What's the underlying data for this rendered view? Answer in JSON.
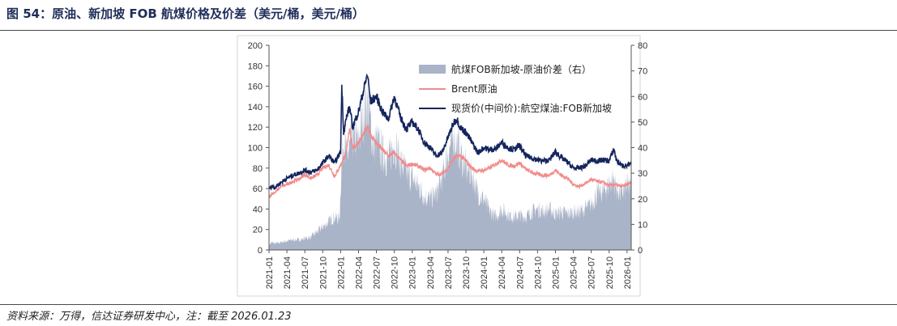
{
  "figure": {
    "title": "图 54：原油、新加坡 FOB 航煤价格及价差（美元/桶，美元/桶）",
    "source": "资料来源：万得，信达证券研发中心，注：截至 2026.01.23"
  },
  "colors": {
    "spread": "#aab4c8",
    "brent": "#f28b8b",
    "jet": "#14255e",
    "axis": "#555555"
  },
  "chart_data": {
    "type": "line",
    "title": "原油、新加坡 FOB 航煤价格及价差",
    "x_tick_labels": [
      "2021-01",
      "2021-04",
      "2021-07",
      "2021-10",
      "2022-01",
      "2022-04",
      "2022-07",
      "2022-10",
      "2023-01",
      "2023-04",
      "2023-07",
      "2023-10",
      "2024-01",
      "2024-04",
      "2024-07",
      "2024-10",
      "2025-01",
      "2025-04",
      "2025-07",
      "2025-10",
      "2026-01"
    ],
    "x_tick_index": [
      0,
      3,
      6,
      9,
      12,
      15,
      18,
      21,
      24,
      27,
      30,
      33,
      36,
      39,
      42,
      45,
      48,
      51,
      54,
      57,
      60
    ],
    "x_range": [
      0,
      60.7
    ],
    "y_left": {
      "min": 0,
      "max": 200,
      "ticks": [
        "0",
        "20",
        "40",
        "60",
        "80",
        "100",
        "120",
        "140",
        "160",
        "180",
        "200"
      ]
    },
    "y_right": {
      "min": 0,
      "max": 80,
      "ticks": [
        "0",
        "10",
        "20",
        "30",
        "40",
        "50",
        "60",
        "70",
        "80"
      ]
    },
    "series": [
      {
        "name": "航煤FOB新加坡-原油价差（右）",
        "type": "area",
        "axis": "right",
        "points": [
          [
            0,
            2
          ],
          [
            0.5,
            3
          ],
          [
            1,
            2.5
          ],
          [
            2,
            3
          ],
          [
            3,
            3.5
          ],
          [
            4,
            4
          ],
          [
            5,
            4
          ],
          [
            6,
            4.5
          ],
          [
            7,
            5
          ],
          [
            8,
            7
          ],
          [
            9,
            9
          ],
          [
            10,
            11
          ],
          [
            11,
            13
          ],
          [
            11.8,
            12
          ],
          [
            12.1,
            30
          ],
          [
            12.5,
            45
          ],
          [
            13,
            36
          ],
          [
            13.5,
            40
          ],
          [
            14,
            45
          ],
          [
            15,
            42
          ],
          [
            16,
            55
          ],
          [
            16.5,
            58
          ],
          [
            17,
            50
          ],
          [
            17.5,
            40
          ],
          [
            18,
            43
          ],
          [
            19,
            38
          ],
          [
            20,
            35
          ],
          [
            21,
            42
          ],
          [
            22,
            35
          ],
          [
            23,
            30
          ],
          [
            24,
            28
          ],
          [
            25,
            25
          ],
          [
            26,
            21
          ],
          [
            27,
            20
          ],
          [
            28,
            22
          ],
          [
            29,
            28
          ],
          [
            30,
            38
          ],
          [
            31,
            45
          ],
          [
            32,
            38
          ],
          [
            33,
            32
          ],
          [
            34,
            30
          ],
          [
            35,
            22
          ],
          [
            36,
            20
          ],
          [
            37,
            15
          ],
          [
            38,
            13
          ],
          [
            39,
            16
          ],
          [
            40,
            14
          ],
          [
            41,
            13
          ],
          [
            42,
            13.5
          ],
          [
            43,
            13
          ],
          [
            44,
            15
          ],
          [
            45,
            16
          ],
          [
            46,
            15
          ],
          [
            47,
            16
          ],
          [
            48,
            14
          ],
          [
            49,
            15
          ],
          [
            50,
            14
          ],
          [
            51,
            15
          ],
          [
            52,
            15
          ],
          [
            53,
            16
          ],
          [
            54,
            18
          ],
          [
            55,
            22
          ],
          [
            56,
            23
          ],
          [
            57,
            26
          ],
          [
            57.8,
            28
          ],
          [
            58.2,
            24
          ],
          [
            59,
            22
          ],
          [
            60,
            25
          ],
          [
            60.7,
            24
          ]
        ]
      },
      {
        "name": "Brent原油",
        "type": "line",
        "axis": "left",
        "points": [
          [
            0,
            52
          ],
          [
            0.5,
            55
          ],
          [
            1,
            56
          ],
          [
            2,
            62
          ],
          [
            3,
            64
          ],
          [
            4,
            67
          ],
          [
            5,
            69
          ],
          [
            6,
            74
          ],
          [
            7,
            70
          ],
          [
            8,
            73
          ],
          [
            9,
            80
          ],
          [
            10,
            83
          ],
          [
            11,
            72
          ],
          [
            12,
            83
          ],
          [
            13,
            96
          ],
          [
            13.5,
            120
          ],
          [
            14,
            100
          ],
          [
            15,
            105
          ],
          [
            16,
            115
          ],
          [
            16.5,
            120
          ],
          [
            17,
            113
          ],
          [
            18,
            104
          ],
          [
            19,
            98
          ],
          [
            20,
            92
          ],
          [
            21,
            95
          ],
          [
            22,
            88
          ],
          [
            23,
            82
          ],
          [
            24,
            84
          ],
          [
            25,
            82
          ],
          [
            26,
            78
          ],
          [
            27,
            80
          ],
          [
            28,
            74
          ],
          [
            29,
            74
          ],
          [
            30,
            80
          ],
          [
            31,
            90
          ],
          [
            32,
            92
          ],
          [
            33,
            87
          ],
          [
            34,
            80
          ],
          [
            35,
            77
          ],
          [
            36,
            78
          ],
          [
            37,
            80
          ],
          [
            38,
            84
          ],
          [
            39,
            88
          ],
          [
            40,
            83
          ],
          [
            41,
            82
          ],
          [
            42,
            85
          ],
          [
            43,
            79
          ],
          [
            44,
            76
          ],
          [
            45,
            74
          ],
          [
            46,
            73
          ],
          [
            47,
            73
          ],
          [
            48,
            78
          ],
          [
            49,
            73
          ],
          [
            50,
            70
          ],
          [
            51,
            64
          ],
          [
            52,
            62
          ],
          [
            53,
            65
          ],
          [
            54,
            69
          ],
          [
            55,
            67
          ],
          [
            56,
            66
          ],
          [
            57,
            63
          ],
          [
            58,
            64
          ],
          [
            59,
            62
          ],
          [
            60,
            64
          ],
          [
            60.7,
            66
          ]
        ]
      },
      {
        "name": "现货价(中间价):航空煤油:FOB新加坡",
        "type": "line",
        "axis": "left",
        "points": [
          [
            0,
            60
          ],
          [
            0.5,
            62
          ],
          [
            1,
            61
          ],
          [
            2,
            66
          ],
          [
            3,
            70
          ],
          [
            4,
            73
          ],
          [
            5,
            75
          ],
          [
            6,
            78
          ],
          [
            7,
            76
          ],
          [
            8,
            78
          ],
          [
            9,
            85
          ],
          [
            10,
            92
          ],
          [
            11,
            85
          ],
          [
            12,
            96
          ],
          [
            12.2,
            162
          ],
          [
            12.5,
            115
          ],
          [
            13,
            130
          ],
          [
            13.5,
            140
          ],
          [
            14,
            120
          ],
          [
            15,
            135
          ],
          [
            16,
            160
          ],
          [
            16.5,
            172
          ],
          [
            17,
            145
          ],
          [
            18,
            150
          ],
          [
            19,
            135
          ],
          [
            20,
            128
          ],
          [
            21,
            150
          ],
          [
            22,
            130
          ],
          [
            23,
            118
          ],
          [
            24,
            125
          ],
          [
            25,
            118
          ],
          [
            26,
            105
          ],
          [
            27,
            100
          ],
          [
            28,
            92
          ],
          [
            29,
            95
          ],
          [
            30,
            110
          ],
          [
            31,
            125
          ],
          [
            31.5,
            128
          ],
          [
            32,
            120
          ],
          [
            33,
            115
          ],
          [
            34,
            105
          ],
          [
            35,
            95
          ],
          [
            36,
            100
          ],
          [
            37,
            98
          ],
          [
            38,
            99
          ],
          [
            39,
            105
          ],
          [
            40,
            100
          ],
          [
            41,
            98
          ],
          [
            42,
            102
          ],
          [
            43,
            92
          ],
          [
            44,
            90
          ],
          [
            45,
            88
          ],
          [
            46,
            87
          ],
          [
            47,
            88
          ],
          [
            48,
            96
          ],
          [
            49,
            90
          ],
          [
            50,
            86
          ],
          [
            51,
            80
          ],
          [
            52,
            80
          ],
          [
            53,
            82
          ],
          [
            54,
            88
          ],
          [
            55,
            87
          ],
          [
            56,
            88
          ],
          [
            57,
            87
          ],
          [
            57.8,
            99
          ],
          [
            58.2,
            88
          ],
          [
            59,
            83
          ],
          [
            60,
            82
          ],
          [
            60.7,
            84
          ]
        ]
      }
    ],
    "legend": {
      "placement": "top-right",
      "items": [
        "航煤FOB新加坡-原油价差（右）",
        "Brent原油",
        "现货价(中间价):航空煤油:FOB新加坡"
      ]
    }
  }
}
